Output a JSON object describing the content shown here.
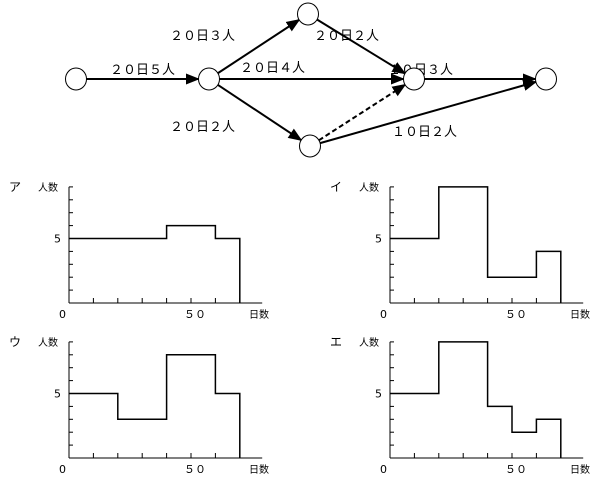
{
  "network": {
    "activities": [
      {
        "from": "n1",
        "to": "n2",
        "label": "２０日５人",
        "dashed": false
      },
      {
        "from": "n2",
        "to": "n3",
        "label": "２０日３人",
        "dashed": false
      },
      {
        "from": "n3",
        "to": "n4",
        "label": "２０日２人",
        "dashed": false
      },
      {
        "from": "n2",
        "to": "n4",
        "label": "２０日４人",
        "dashed": false
      },
      {
        "from": "n4",
        "to": "n5",
        "label": "１０日３人",
        "dashed": false
      },
      {
        "from": "n2",
        "to": "n6",
        "label": "２０日２人",
        "dashed": false
      },
      {
        "from": "n6",
        "to": "n4",
        "label": "",
        "dashed": true
      },
      {
        "from": "n6",
        "to": "n5",
        "label": "１０日２人",
        "dashed": false
      }
    ]
  },
  "chart_data": [
    {
      "type": "line",
      "step": true,
      "label": "ア",
      "ylabel": "人数",
      "xlabel": "日数",
      "xticklabels": [
        "0",
        "５０"
      ],
      "yticklabels": [
        "5"
      ],
      "xlim": [
        0,
        80
      ],
      "ylim": [
        0,
        9
      ],
      "x_tick_step": 10,
      "segments": [
        {
          "x": [
            0,
            40
          ],
          "y": 5
        },
        {
          "x": [
            40,
            60
          ],
          "y": 6
        },
        {
          "x": [
            60,
            70
          ],
          "y": 5
        }
      ]
    },
    {
      "type": "line",
      "step": true,
      "label": "イ",
      "ylabel": "人数",
      "xlabel": "日数",
      "xticklabels": [
        "0",
        "５０"
      ],
      "yticklabels": [
        "5"
      ],
      "xlim": [
        0,
        80
      ],
      "ylim": [
        0,
        9
      ],
      "x_tick_step": 10,
      "segments": [
        {
          "x": [
            0,
            20
          ],
          "y": 5
        },
        {
          "x": [
            20,
            40
          ],
          "y": 9
        },
        {
          "x": [
            40,
            60
          ],
          "y": 2
        },
        {
          "x": [
            60,
            70
          ],
          "y": 4
        }
      ]
    },
    {
      "type": "line",
      "step": true,
      "label": "ウ",
      "ylabel": "人数",
      "xlabel": "日数",
      "xticklabels": [
        "0",
        "５０"
      ],
      "yticklabels": [
        "5"
      ],
      "xlim": [
        0,
        80
      ],
      "ylim": [
        0,
        9
      ],
      "x_tick_step": 10,
      "segments": [
        {
          "x": [
            0,
            20
          ],
          "y": 5
        },
        {
          "x": [
            20,
            40
          ],
          "y": 3
        },
        {
          "x": [
            40,
            60
          ],
          "y": 8
        },
        {
          "x": [
            60,
            70
          ],
          "y": 5
        }
      ]
    },
    {
      "type": "line",
      "step": true,
      "label": "エ",
      "ylabel": "人数",
      "xlabel": "日数",
      "xticklabels": [
        "0",
        "５０"
      ],
      "yticklabels": [
        "5"
      ],
      "xlim": [
        0,
        80
      ],
      "ylim": [
        0,
        9
      ],
      "x_tick_step": 10,
      "segments": [
        {
          "x": [
            0,
            20
          ],
          "y": 5
        },
        {
          "x": [
            20,
            40
          ],
          "y": 9
        },
        {
          "x": [
            40,
            50
          ],
          "y": 4
        },
        {
          "x": [
            50,
            60
          ],
          "y": 2
        },
        {
          "x": [
            60,
            70
          ],
          "y": 3
        }
      ]
    }
  ]
}
